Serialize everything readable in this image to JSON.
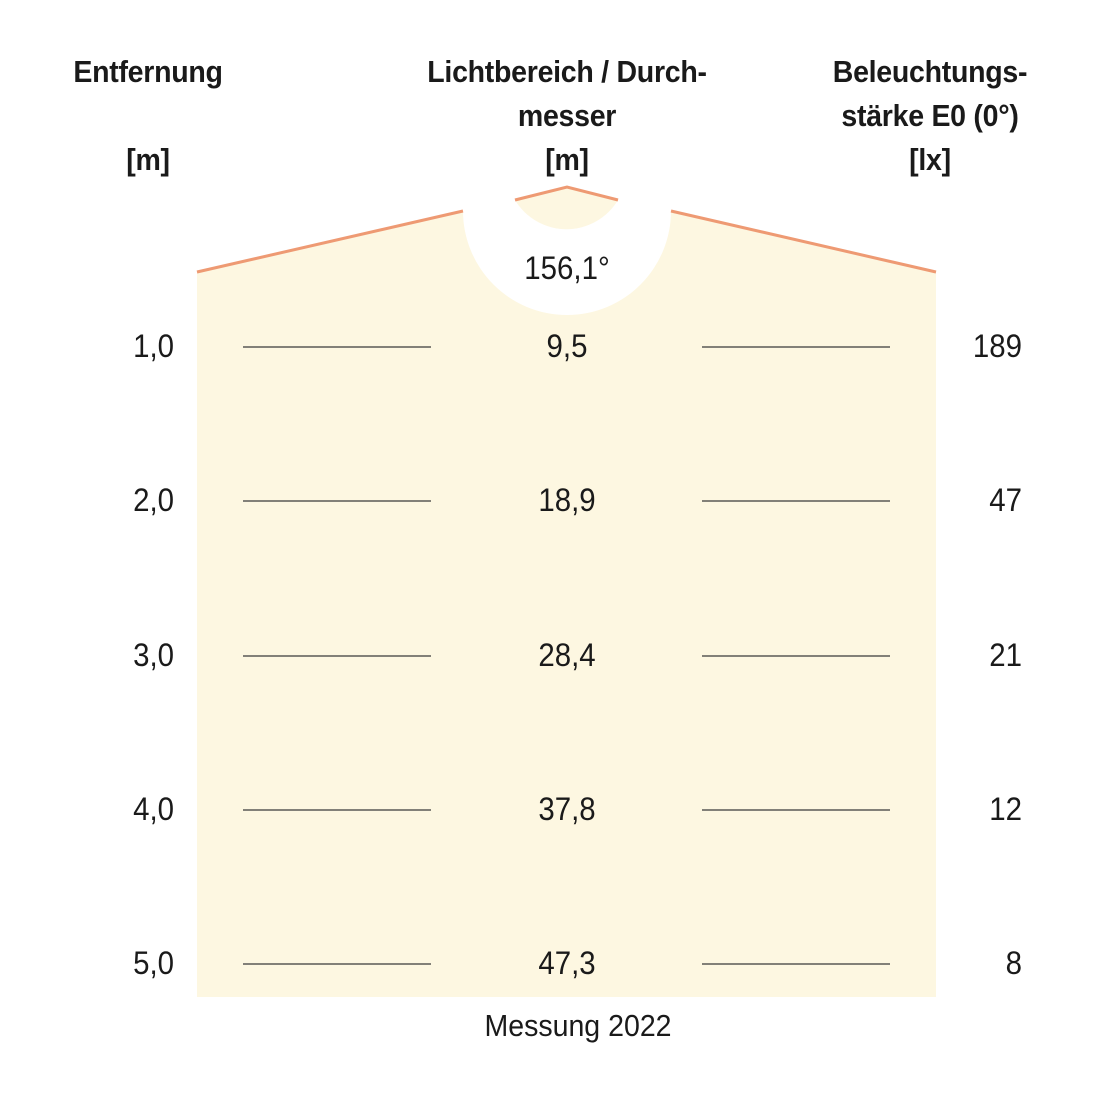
{
  "headers": {
    "distance": [
      "Entfernung",
      "[m]"
    ],
    "diameter": [
      "Lichtbereich / Durch-",
      "messer",
      "[m]"
    ],
    "illuminance": [
      "Beleuchtungs-",
      "stärke E0 (0°)",
      "[lx]"
    ]
  },
  "beam_angle": "156,1°",
  "rows": [
    {
      "distance": "1,0",
      "diameter": "9,5",
      "lux": "189"
    },
    {
      "distance": "2,0",
      "diameter": "18,9",
      "lux": "47"
    },
    {
      "distance": "3,0",
      "diameter": "28,4",
      "lux": "21"
    },
    {
      "distance": "4,0",
      "diameter": "37,8",
      "lux": "12"
    },
    {
      "distance": "5,0",
      "diameter": "47,3",
      "lux": "8"
    }
  ],
  "caption": "Messung 2022",
  "colors": {
    "light_cone": "#fdf7e1",
    "beam_edge": "#ee9a73",
    "leader_line": "#3a3a3a",
    "text": "#1a1a1a"
  }
}
